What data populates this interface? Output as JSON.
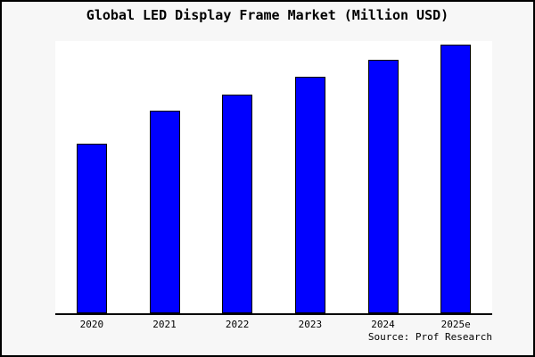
{
  "title": "Global LED Display Frame Market (Million USD)",
  "source": "Source: Prof Research",
  "colors": {
    "background": "#f7f7f7",
    "plot_background": "#ffffff",
    "bar_fill": "#0000ff",
    "bar_edge": "#000000",
    "axis": "#000000",
    "text": "#000000"
  },
  "chart_data": {
    "type": "bar",
    "title": "Global LED Display Frame Market (Million USD)",
    "categories": [
      "2020",
      "2021",
      "2022",
      "2023",
      "2024",
      "2025e"
    ],
    "values": [
      63,
      75.5,
      81.5,
      88,
      94.5,
      100
    ],
    "xlabel": "",
    "ylabel": "",
    "ylim": [
      0,
      101.5
    ],
    "grid": false,
    "legend": "none",
    "y_axis_labels_shown": false,
    "annotations": [
      "Source: Prof Research"
    ]
  }
}
